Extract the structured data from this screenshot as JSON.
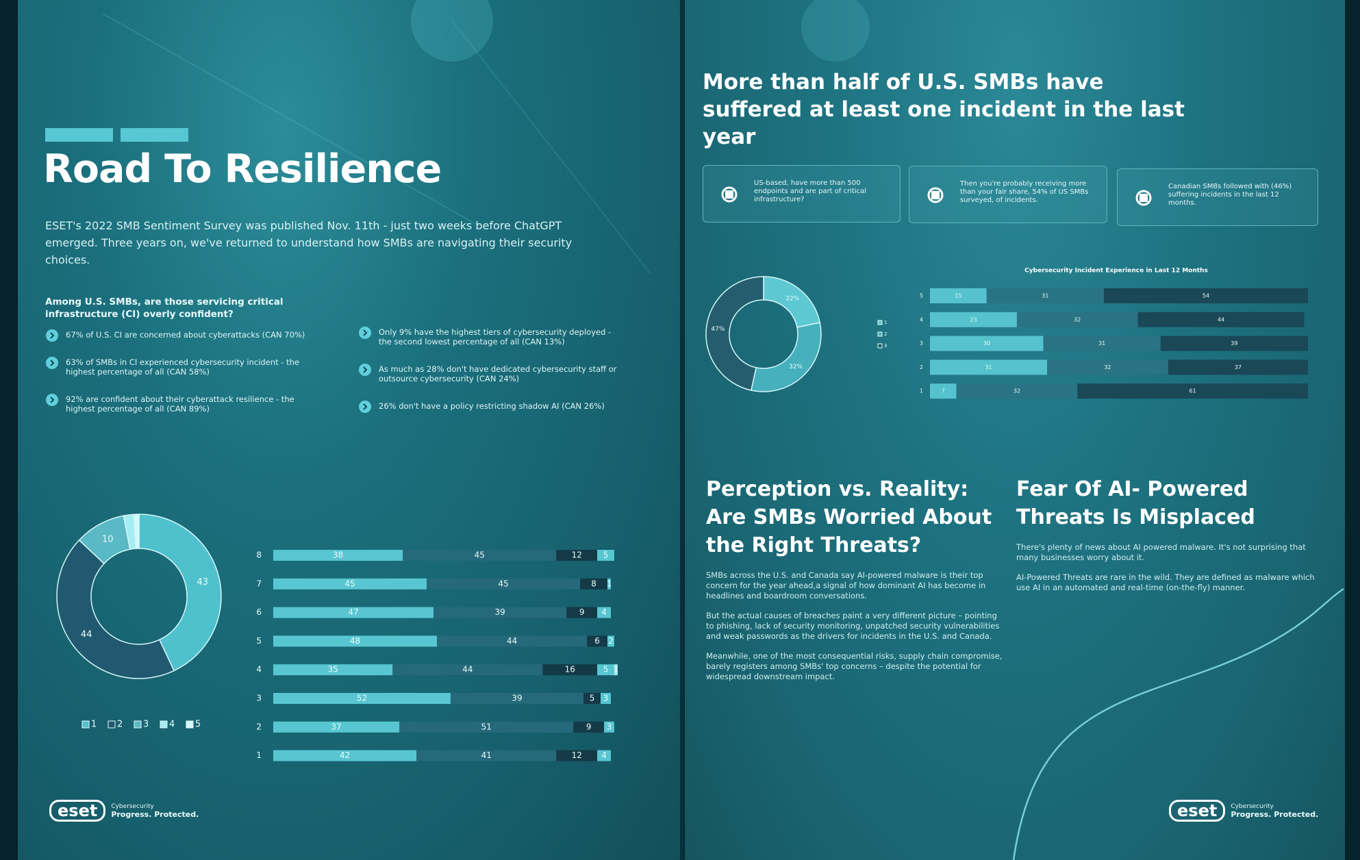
{
  "left_page": {
    "title": "Road To Resilience",
    "intro": "ESET's 2022 SMB Sentiment Survey was published Nov. 11th - just two weeks before ChatGPT emerged. Three years on, we've returned to understand how SMBs are navigating their security choices.",
    "question": "Among U.S. SMBs, are those servicing critical infrastructure (CI) overly confident?",
    "bullets": [
      "67% of U.S. CI are concerned about cyberattacks (CAN 70%)",
      "63% of SMBs in CI experienced cybersecurity incident - the highest percentage of all (CAN 58%)",
      "92% are confident about their cyberattack resilience - the highest percentage of all (CAN 89%)",
      "Only 9% have the highest tiers of cybersecurity deployed - the second lowest percentage of all (CAN 13%)",
      "As much as 28% don't have dedicated cybersecurity staff or outsource  cybersecurity (CAN 24%)",
      "26% don't have a policy restricting shadow AI (CAN 26%)"
    ],
    "logo": {
      "brand": "eset",
      "line_1": "Cybersecurity",
      "line_2": "Progress. Protected."
    }
  },
  "right_page": {
    "title": "More than half of U.S. SMBs have suffered at least one incident in the last year",
    "cards": [
      "US-based, have more than 500 endpoints and are part of critical infrastructure?",
      "Then you're probably receiving more than your fair share, 54% of US SMBs surveyed, of incidents.",
      "Canadian SMBs followed with (46%) suffering incidents in the last 12 months."
    ],
    "sections": [
      {
        "heading": "Perception vs. Reality: Are SMBs Worried About the Right Threats?",
        "paragraphs": [
          "SMBs across the U.S. and Canada say AI-powered malware is their top concern for the year ahead,a signal of how dominant AI has become in headlines and boardroom conversations.",
          "But the actual causes of breaches paint a very different picture – pointing to phishing, lack of security monitoring, unpatched security vulnerabilities and weak passwords as the drivers for incidents in the U.S. and Canada.",
          "Meanwhile, one of the most consequential risks, supply chain compromise, barely registers among SMBs' top concerns – despite the potential for widespread downstream impact."
        ]
      },
      {
        "heading": "Fear Of AI- Powered Threats Is Misplaced",
        "paragraphs": [
          "There's plenty of news about AI  powered malware. It's not surprising that many businesses worry about it.",
          "AI-Powered Threats are rare in the wild. They are defined as malware which use AI in an automated and real-time (on-the-fly) manner."
        ]
      }
    ],
    "logo": {
      "brand": "eset",
      "line_1": "Cybersecurity",
      "line_2": "Progress. Protected."
    }
  },
  "chart_data": [
    {
      "type": "donut",
      "categories": [
        "1",
        "2",
        "3",
        "4",
        "5"
      ],
      "values": [
        43,
        44,
        10,
        2,
        1
      ],
      "colors": [
        "#4fc1cd",
        "#215a70",
        "#5ab9c5",
        "#a4edf3",
        "#d4f9fb"
      ],
      "legend": true
    },
    {
      "type": "hbar-stacked",
      "categories": [
        "8",
        "7",
        "6",
        "5",
        "4",
        "3",
        "2",
        "1"
      ],
      "xlim": [
        0,
        100
      ],
      "series": [
        {
          "color": "#58c6d1",
          "values": [
            38,
            45,
            47,
            48,
            35,
            52,
            37,
            42
          ]
        },
        {
          "color": "#26697a",
          "values": [
            45,
            45,
            39,
            44,
            44,
            39,
            51,
            41
          ]
        },
        {
          "color": "#143a47",
          "values": [
            12,
            8,
            9,
            6,
            16,
            5,
            9,
            12
          ]
        },
        {
          "color": "#58c6d1",
          "values": [
            5,
            1,
            4,
            2,
            5,
            3,
            3,
            4
          ]
        },
        {
          "color": "#a4e8ee",
          "values": [
            null,
            null,
            null,
            null,
            1,
            null,
            null,
            null
          ]
        }
      ]
    },
    {
      "type": "donut",
      "categories": [
        "1",
        "2",
        "3"
      ],
      "values": [
        22,
        32,
        47
      ],
      "value_labels": [
        "22%",
        "32%",
        "47%"
      ],
      "colors": [
        "#5dc8d2",
        "#46b0bd",
        "#245d6e"
      ],
      "legend": true
    },
    {
      "type": "hbar-stacked",
      "title": "Cybersecurity Incident Experience in Last 12 Months",
      "categories": [
        "5",
        "4",
        "3",
        "2",
        "1"
      ],
      "xlim": [
        0,
        100
      ],
      "series": [
        {
          "color": "#55c2cd",
          "values": [
            15,
            23,
            30,
            31,
            7
          ]
        },
        {
          "color": "#2a7384",
          "values": [
            31,
            32,
            31,
            32,
            32
          ]
        },
        {
          "color": "#1a4857",
          "values": [
            54,
            44,
            39,
            37,
            61
          ]
        }
      ]
    }
  ]
}
